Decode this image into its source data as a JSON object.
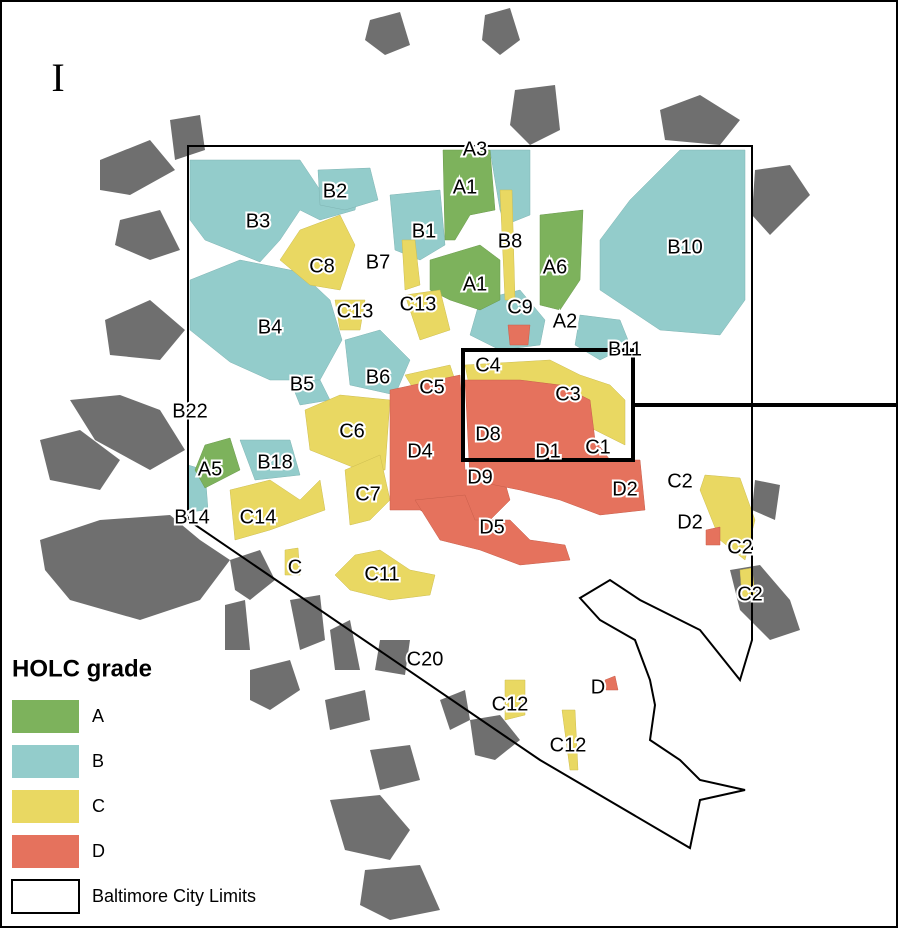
{
  "panel_label": "I",
  "legend": {
    "title": "HOLC grade",
    "items": [
      "A",
      "B",
      "C",
      "D",
      "Baltimore City Limits"
    ]
  },
  "labels": [
    "A3",
    "B2",
    "A1",
    "B3",
    "B1",
    "B8",
    "C8",
    "B7",
    "A6",
    "B10",
    "A1",
    "C13",
    "C13",
    "C9",
    "A2",
    "B4",
    "B11",
    "C4",
    "B5",
    "B6",
    "C5",
    "C3",
    "B22",
    "C6",
    "D8",
    "D4",
    "D1",
    "C1",
    "A5",
    "B18",
    "D9",
    "C2",
    "D2",
    "C7",
    "B14",
    "C14",
    "D2",
    "D5",
    "C2",
    "C",
    "C11",
    "C2",
    "C20",
    "D",
    "C12",
    "C12"
  ]
}
